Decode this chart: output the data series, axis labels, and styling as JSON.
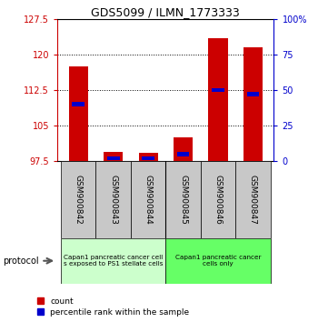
{
  "title": "GDS5099 / ILMN_1773333",
  "samples": [
    "GSM900842",
    "GSM900843",
    "GSM900844",
    "GSM900845",
    "GSM900846",
    "GSM900847"
  ],
  "count_values": [
    117.5,
    99.5,
    99.2,
    102.5,
    123.5,
    121.5
  ],
  "percentile_values": [
    40,
    2,
    2,
    5,
    50,
    47
  ],
  "ylim_left": [
    97.5,
    127.5
  ],
  "ylim_right": [
    0,
    100
  ],
  "yticks_left": [
    97.5,
    105,
    112.5,
    120,
    127.5
  ],
  "ytick_labels_left": [
    "97.5",
    "105",
    "112.5",
    "120",
    "127.5"
  ],
  "yticks_right": [
    0,
    25,
    50,
    75,
    100
  ],
  "ytick_labels_right": [
    "0",
    "25",
    "50",
    "75",
    "100%"
  ],
  "grid_lines": [
    105,
    112.5,
    120
  ],
  "baseline": 97.5,
  "bar_width": 0.55,
  "red_color": "#cc0000",
  "blue_color": "#0000cc",
  "group1_label": "Capan1 pancreatic cancer cell\ns exposed to PS1 stellate cells",
  "group2_label": "Capan1 pancreatic cancer\ncells only",
  "group1_color": "#ccffcc",
  "group2_color": "#66ff66",
  "ticklabel_area_color": "#c8c8c8",
  "legend_count_label": "count",
  "legend_percentile_label": "percentile rank within the sample",
  "protocol_label": "protocol"
}
